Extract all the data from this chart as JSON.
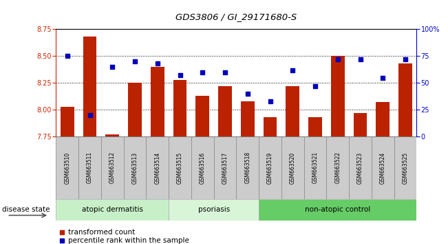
{
  "title": "GDS3806 / GI_29171680-S",
  "samples": [
    "GSM663510",
    "GSM663511",
    "GSM663512",
    "GSM663513",
    "GSM663514",
    "GSM663515",
    "GSM663516",
    "GSM663517",
    "GSM663518",
    "GSM663519",
    "GSM663520",
    "GSM663521",
    "GSM663522",
    "GSM663523",
    "GSM663524",
    "GSM663525"
  ],
  "transformed_count": [
    8.03,
    8.68,
    7.77,
    8.25,
    8.4,
    8.28,
    8.13,
    8.22,
    8.08,
    7.93,
    8.22,
    7.93,
    8.5,
    7.97,
    8.07,
    8.43
  ],
  "percentile_rank": [
    75,
    20,
    65,
    70,
    68,
    57,
    60,
    60,
    40,
    33,
    62,
    47,
    72,
    72,
    55,
    72
  ],
  "ylim_left": [
    7.75,
    8.75
  ],
  "ylim_right": [
    0,
    100
  ],
  "yticks_left": [
    7.75,
    8.0,
    8.25,
    8.5,
    8.75
  ],
  "yticks_right": [
    0,
    25,
    50,
    75,
    100
  ],
  "ytick_labels_right": [
    "0",
    "25",
    "50",
    "75",
    "100%"
  ],
  "bar_color": "#bb2200",
  "dot_color": "#0000bb",
  "bar_bottom": 7.75,
  "groups": [
    {
      "label": "atopic dermatitis",
      "start": 0,
      "end": 5,
      "color": "#c8f0c8"
    },
    {
      "label": "psoriasis",
      "start": 5,
      "end": 9,
      "color": "#d8f5d8"
    },
    {
      "label": "non-atopic control",
      "start": 9,
      "end": 16,
      "color": "#66cc66"
    }
  ],
  "disease_state_label": "disease state",
  "legend_red_label": "transformed count",
  "legend_blue_label": "percentile rank within the sample",
  "left_tick_color": "#cc2200",
  "right_tick_color": "#0000cc",
  "grid_dotted_color": "#333333",
  "sample_bg_color": "#cccccc",
  "sample_border_color": "#888888"
}
